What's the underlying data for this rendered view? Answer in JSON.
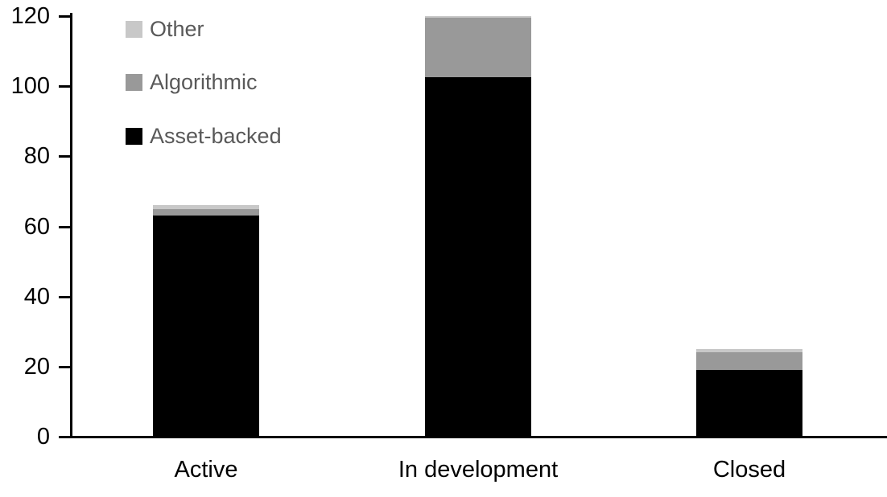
{
  "chart_data": {
    "type": "bar",
    "stacked": true,
    "title": "",
    "xlabel": "",
    "ylabel": "",
    "categories": [
      "Active",
      "In development",
      "Closed"
    ],
    "series": [
      {
        "name": "Asset-backed",
        "color": "#000000",
        "values": [
          63,
          102.5,
          19
        ]
      },
      {
        "name": "Algorithmic",
        "color": "#999999",
        "values": [
          2,
          17,
          5
        ]
      },
      {
        "name": "Other",
        "color": "#c8c8c8",
        "values": [
          1,
          0.5,
          1
        ]
      }
    ],
    "totals": [
      66,
      120,
      25
    ],
    "ylim": [
      0,
      120
    ],
    "y_ticks": [
      0,
      20,
      40,
      60,
      80,
      100,
      120
    ],
    "grid": false,
    "legend": {
      "position": "top-left",
      "order_top_to_bottom": [
        "Other",
        "Algorithmic",
        "Asset-backed"
      ],
      "text_color": "#595959"
    },
    "axis_color": "#000000",
    "tick_label_color": "#000000",
    "category_label_color": "#000000"
  }
}
